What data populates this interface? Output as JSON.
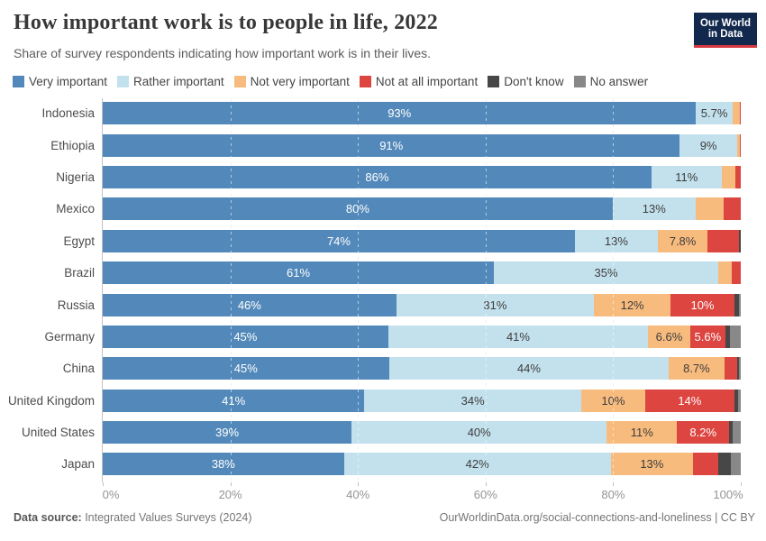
{
  "header": {
    "title": "How important work is to people in life, 2022",
    "subtitle": "Share of survey respondents indicating how important work is in their lives.",
    "logo": {
      "line1": "Our World",
      "line2": "in Data"
    }
  },
  "footer": {
    "source_label": "Data source:",
    "source_text": " Integrated Values Surveys (2024)",
    "link_text": "OurWorldinData.org/social-connections-and-loneliness | CC BY"
  },
  "chart_data": {
    "type": "bar",
    "subtype": "horizontal-stacked-percentage",
    "title": "How important work is to people in life, 2022",
    "subtitle": "Share of survey respondents indicating how important work is in their lives.",
    "xlim": [
      0,
      100
    ],
    "grid": "dashed-vertical",
    "legend_position": "top",
    "series_labels": [
      "Very important",
      "Rather important",
      "Not very important",
      "Not at all important",
      "Don't know",
      "No answer"
    ],
    "colors": [
      "#5389ba",
      "#c3e1ed",
      "#f8bb7e",
      "#dc4540",
      "#474747",
      "#888888"
    ],
    "label_text_colors": [
      "#ffffff",
      "#3d3d3d",
      "#3d3d3d",
      "#ffffff",
      "#ffffff",
      "#ffffff"
    ],
    "x_ticks": [
      {
        "pct": 0,
        "label": "0%"
      },
      {
        "pct": 20,
        "label": "20%"
      },
      {
        "pct": 40,
        "label": "40%"
      },
      {
        "pct": 60,
        "label": "60%"
      },
      {
        "pct": 80,
        "label": "80%"
      },
      {
        "pct": 100,
        "label": "100%"
      }
    ],
    "gridline_pcts": [
      20,
      40,
      60,
      80
    ],
    "rows": [
      {
        "country": "Indonesia",
        "values": [
          93,
          5.7,
          1.1,
          0.2,
          0,
          0
        ],
        "labels": [
          "93%",
          "5.7%",
          "",
          "",
          "",
          ""
        ]
      },
      {
        "country": "Ethiopia",
        "values": [
          91,
          9,
          0.4,
          0.2,
          0,
          0
        ],
        "labels": [
          "91%",
          "9%",
          "",
          "",
          "",
          ""
        ]
      },
      {
        "country": "Nigeria",
        "values": [
          86,
          11,
          2.2,
          0.8,
          0,
          0
        ],
        "labels": [
          "86%",
          "11%",
          "",
          "",
          "",
          ""
        ]
      },
      {
        "country": "Mexico",
        "values": [
          80,
          13,
          4.4,
          2.7,
          0,
          0
        ],
        "labels": [
          "80%",
          "13%",
          "",
          "",
          "",
          ""
        ]
      },
      {
        "country": "Egypt",
        "values": [
          74,
          13,
          7.8,
          4.9,
          0.3,
          0
        ],
        "labels": [
          "74%",
          "13%",
          "7.8%",
          "",
          "",
          ""
        ]
      },
      {
        "country": "Brazil",
        "values": [
          61,
          35,
          2.1,
          1.4,
          0,
          0
        ],
        "labels": [
          "61%",
          "35%",
          "",
          "",
          "",
          ""
        ]
      },
      {
        "country": "Russia",
        "values": [
          46,
          31,
          12,
          10,
          0.7,
          0.3
        ],
        "labels": [
          "46%",
          "31%",
          "12%",
          "10%",
          "",
          ""
        ]
      },
      {
        "country": "Germany",
        "values": [
          45,
          41,
          6.6,
          5.6,
          0.7,
          1.7
        ],
        "labels": [
          "45%",
          "41%",
          "6.6%",
          "5.6%",
          "",
          ""
        ]
      },
      {
        "country": "China",
        "values": [
          45,
          44,
          8.7,
          2.0,
          0.3,
          0.3
        ],
        "labels": [
          "45%",
          "44%",
          "8.7%",
          "",
          "",
          ""
        ]
      },
      {
        "country": "United Kingdom",
        "values": [
          41,
          34,
          10,
          14,
          0.6,
          0.4
        ],
        "labels": [
          "41%",
          "34%",
          "10%",
          "14%",
          "",
          ""
        ]
      },
      {
        "country": "United States",
        "values": [
          39,
          40,
          11,
          8.2,
          0.6,
          1.2
        ],
        "labels": [
          "39%",
          "40%",
          "11%",
          "8.2%",
          "",
          ""
        ]
      },
      {
        "country": "Japan",
        "values": [
          38,
          42,
          13,
          3.9,
          2.1,
          1.5
        ],
        "labels": [
          "38%",
          "42%",
          "13%",
          "",
          "",
          ""
        ]
      }
    ]
  }
}
